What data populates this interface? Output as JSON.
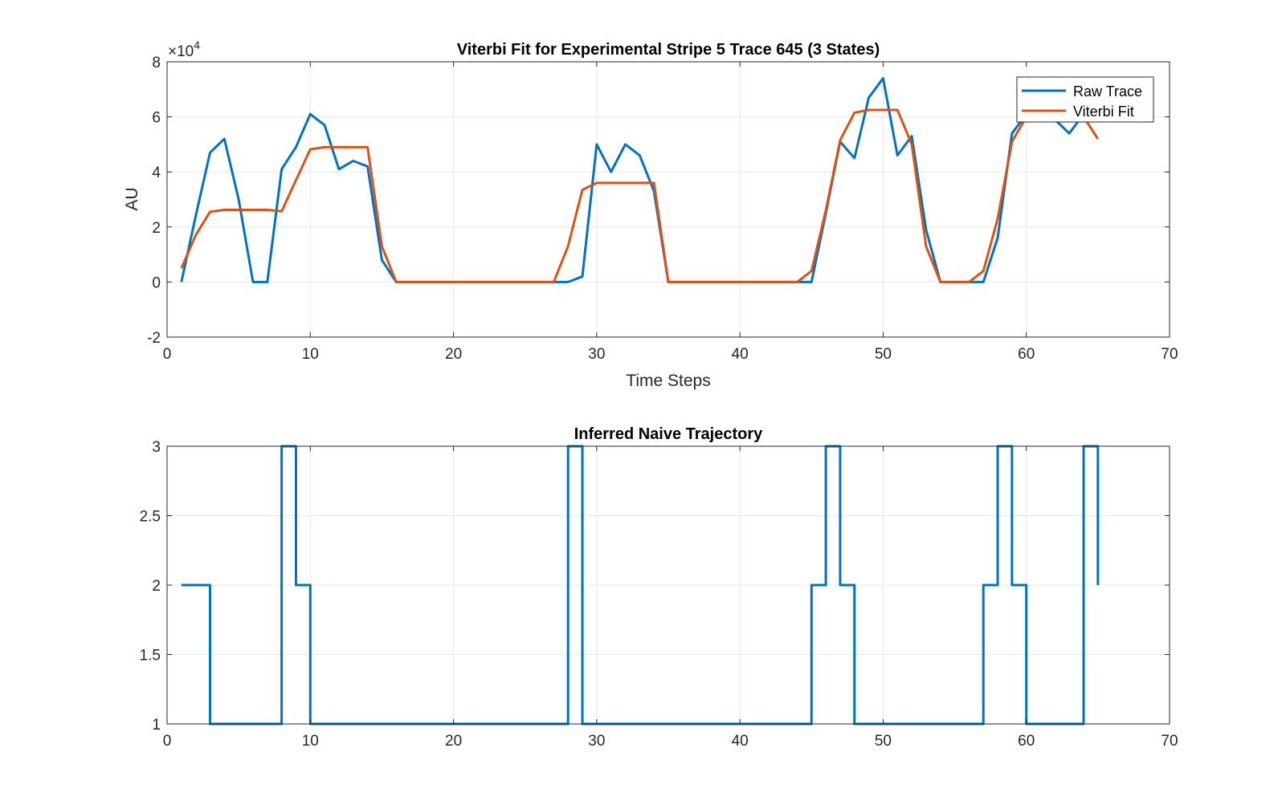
{
  "chart_data": [
    {
      "type": "line",
      "title": "Viterbi Fit for Experimental Stripe 5 Trace 645 (3 States)",
      "xlabel": "Time Steps",
      "ylabel": "AU",
      "exponent_base": "×10",
      "exponent_power": "4",
      "xlim": [
        0,
        70
      ],
      "ylim": [
        -2,
        8
      ],
      "xticks": [
        0,
        10,
        20,
        30,
        40,
        50,
        60,
        70
      ],
      "yticks": [
        -2,
        0,
        2,
        4,
        6,
        8
      ],
      "grid": true,
      "legend_position": "top-right",
      "x": [
        1,
        2,
        3,
        4,
        5,
        6,
        7,
        8,
        9,
        10,
        11,
        12,
        13,
        14,
        15,
        16,
        17,
        18,
        19,
        20,
        21,
        22,
        23,
        24,
        25,
        26,
        27,
        28,
        29,
        30,
        31,
        32,
        33,
        34,
        35,
        36,
        37,
        38,
        39,
        40,
        41,
        42,
        43,
        44,
        45,
        46,
        47,
        48,
        49,
        50,
        51,
        52,
        53,
        54,
        55,
        56,
        57,
        58,
        59,
        60,
        61,
        62,
        63,
        64,
        65
      ],
      "series": [
        {
          "name": "Raw Trace",
          "color": "#0072BD",
          "values": [
            0,
            2.4,
            4.7,
            5.2,
            3.0,
            0,
            0,
            4.1,
            4.9,
            6.1,
            5.7,
            4.1,
            4.4,
            4.2,
            0.8,
            0,
            0,
            0,
            0,
            0,
            0,
            0,
            0,
            0,
            0,
            0,
            0,
            0,
            0.2,
            5.0,
            4.0,
            5.0,
            4.6,
            3.3,
            0,
            0,
            0,
            0,
            0,
            0,
            0,
            0,
            0,
            0,
            0,
            2.5,
            5.1,
            4.5,
            6.7,
            7.4,
            4.6,
            5.3,
            1.9,
            0,
            0,
            0,
            0,
            1.6,
            5.4,
            6.1,
            6.2,
            5.9,
            5.4,
            6.1,
            6.2
          ]
        },
        {
          "name": "Viterbi Fit",
          "color": "#D95319",
          "values": [
            0.5,
            1.7,
            2.55,
            2.62,
            2.62,
            2.62,
            2.62,
            2.57,
            3.7,
            4.82,
            4.9,
            4.9,
            4.9,
            4.9,
            1.3,
            0,
            0,
            0,
            0,
            0,
            0,
            0,
            0,
            0,
            0,
            0,
            0,
            1.3,
            3.35,
            3.6,
            3.6,
            3.6,
            3.6,
            3.6,
            0,
            0,
            0,
            0,
            0,
            0,
            0,
            0,
            0,
            0,
            0.4,
            2.6,
            5.15,
            6.15,
            6.25,
            6.25,
            6.25,
            5.0,
            1.3,
            0,
            0,
            0,
            0.4,
            2.3,
            5.1,
            6.0,
            6.1,
            6.0,
            5.95,
            6.0,
            5.2
          ]
        }
      ]
    },
    {
      "type": "line",
      "title": "Inferred Naive Trajectory",
      "xlabel": "",
      "ylabel": "",
      "xlim": [
        0,
        70
      ],
      "ylim": [
        1,
        3
      ],
      "xticks": [
        0,
        10,
        20,
        30,
        40,
        50,
        60,
        70
      ],
      "yticks": [
        1,
        1.5,
        2,
        2.5,
        3
      ],
      "grid": true,
      "step": true,
      "x": [
        1,
        2,
        3,
        4,
        5,
        6,
        7,
        8,
        9,
        10,
        11,
        12,
        13,
        14,
        15,
        16,
        17,
        18,
        19,
        20,
        21,
        22,
        23,
        24,
        25,
        26,
        27,
        28,
        29,
        30,
        31,
        32,
        33,
        34,
        35,
        36,
        37,
        38,
        39,
        40,
        41,
        42,
        43,
        44,
        45,
        46,
        47,
        48,
        49,
        50,
        51,
        52,
        53,
        54,
        55,
        56,
        57,
        58,
        59,
        60,
        61,
        62,
        63,
        64,
        65
      ],
      "series": [
        {
          "color": "#0072BD",
          "values": [
            2,
            2,
            1,
            1,
            1,
            1,
            1,
            3,
            2,
            1,
            1,
            1,
            1,
            1,
            1,
            1,
            1,
            1,
            1,
            1,
            1,
            1,
            1,
            1,
            1,
            1,
            1,
            3,
            1,
            1,
            1,
            1,
            1,
            1,
            1,
            1,
            1,
            1,
            1,
            1,
            1,
            1,
            1,
            1,
            2,
            3,
            2,
            1,
            1,
            1,
            1,
            1,
            1,
            1,
            1,
            1,
            2,
            3,
            2,
            1,
            1,
            1,
            1,
            3,
            2
          ]
        }
      ]
    }
  ]
}
